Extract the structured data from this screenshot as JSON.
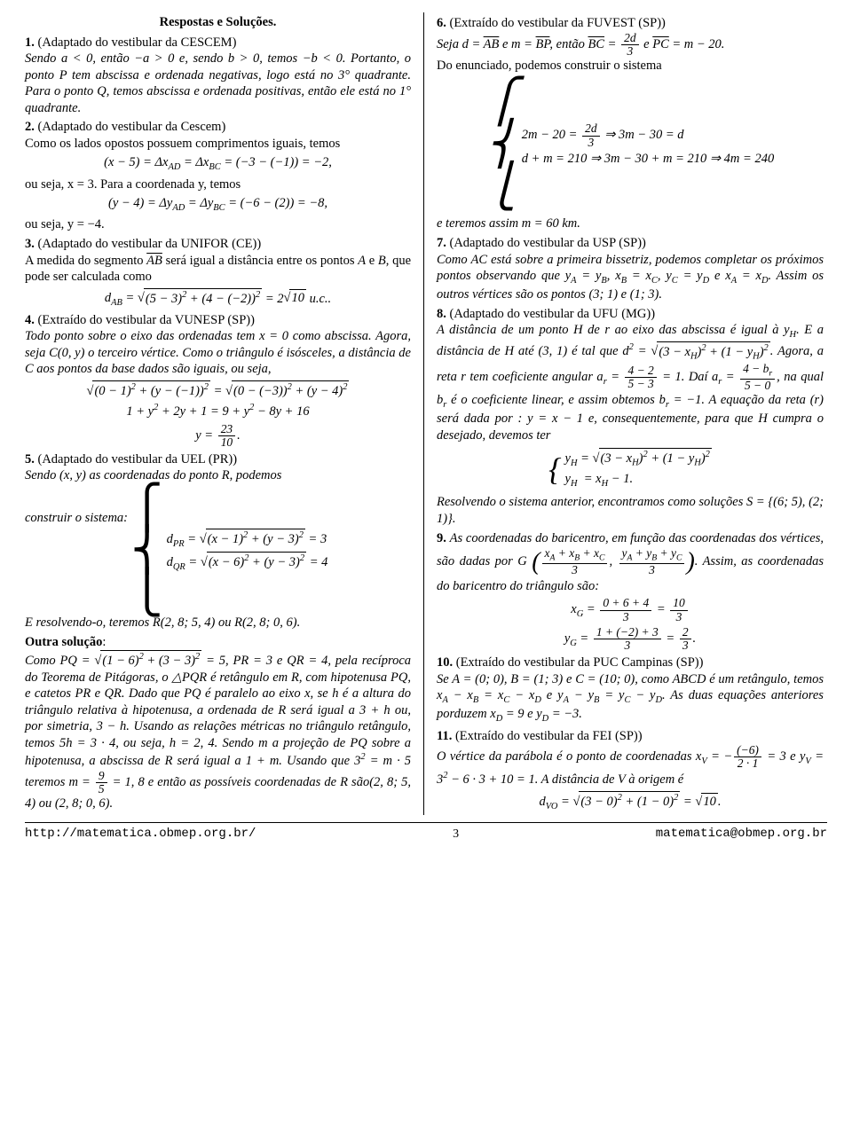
{
  "title": "Respostas e Soluções.",
  "left": {
    "p1a": "1.",
    "p1b": "(Adaptado do vestibular da CESCEM)",
    "t1": "Sendo a < 0, então −a > 0 e, sendo b > 0, temos −b < 0. Portanto, o ponto P tem abscissa e ordenada negativas, logo está no 3° quadrante. Para o ponto Q, temos abscissa e ordenada positivas, então ele está no 1° quadrante.",
    "p2a": "2.",
    "p2b": "(Adaptado do vestibular da Cescem)",
    "t2": "Como os lados opostos possuem comprimentos iguais, temos",
    "e2a": "(x − 5) = Δx<sub>AD</sub> = Δx<sub>BC</sub> = (−3 − (−1)) = −2,",
    "t2b": "ou seja, x = 3. Para a coordenada y, temos",
    "e2b": "(y − 4) = Δy<sub>AD</sub> = Δy<sub>BC</sub> = (−6 − (2)) = −8,",
    "t2c": "ou seja, y = −4.",
    "p3a": "3.",
    "p3b": "(Adaptado do vestibular da UNIFOR (CE))",
    "t3": "A medida do segmento AB será igual a distância entre os pontos A e B, que pode ser calculada como",
    "e3pre": "d<sub>AB</sub> = ",
    "e3rad": "(5 − 3)<sup>2</sup> + (4 − (−2))<sup>2</sup>",
    "e3post": " = 2",
    "e3rad2": "10",
    "e3end": " u.c..",
    "p4a": "4.",
    "p4b": "(Extraído do vestibular da VUNESP (SP))",
    "t4": "Todo ponto sobre o eixo das ordenadas tem x = 0 como abscissa. Agora, seja C(0, y) o terceiro vértice. Como o triângulo é isósceles, a distância de C aos pontos da base dados são iguais, ou seja,",
    "e4r1": "(0 − 1)<sup>2</sup> + (y − (−1))<sup>2</sup>",
    "e4r2": "(0 − (−3))<sup>2</sup> + (y − 4)<sup>2</sup>",
    "e4l2": "1 + y<sup>2</sup> + 2y + 1 = 9 + y<sup>2</sup> − 8y + 16",
    "e4yeq": "y = ",
    "e4n": "23",
    "e4d": "10",
    "p5a": "5.",
    "p5b": "(Adaptado do vestibular da UEL (PR))",
    "t5": "Sendo (x, y) as coordenadas do ponto R, podemos",
    "t5a": "construir o sistema:",
    "e5r1": "(x − 1)<sup>2</sup> + (y − 3)<sup>2</sup>",
    "e5r1b": " = 3",
    "e5r2": "(x − 6)<sup>2</sup> + (y − 3)<sup>2</sup>",
    "e5r2b": " = 4",
    "t5b": "E resolvendo-o, teremos R(2, 8; 5, 4) ou R(2, 8; 0, 6).",
    "os": "Outra solução",
    "t5c": "Como PQ = ",
    "e5r3": "(1 − 6)<sup>2</sup> + (3 − 3)<sup>2</sup>",
    "t5d": " = 5, PR = 3 e QR = 4, pela recíproca do Teorema de Pitágoras, o △PQR é retângulo em R, com hipotenusa PQ, e catetos PR e QR. Dado que PQ é paralelo ao eixo x, se h é a altura do triângulo relativa à hipotenusa, a ordenada de R será igual a 3 + h ou, por simetria, 3 − h. Usando as relações métricas no triângulo retângulo, temos 5h = 3 · 4, ou seja, h = 2, 4. Sendo m a projeção de PQ sobre a hipotenusa, a abscissa de R será igual a 1 + m. Usando que 3<sup>2</sup> = m · 5 teremos m = ",
    "e5n": "9",
    "e5d": "5",
    "t5e": " = 1, 8 e então as possíveis coordenadas de R são(2, 8; 5, 4) ou (2, 8; 0, 6)."
  },
  "right": {
    "p6a": "6.",
    "p6b": "(Extraído do vestibular da FUVEST (SP))",
    "t6a": "Seja d = ",
    "t6ab": "AB",
    "t6b": " e m = ",
    "t6bp": "BP",
    "t6c": ", então ",
    "t6bc": "BC",
    "t6d": " = ",
    "t6n": "2d",
    "t6dd": "3",
    "t6e": " e ",
    "t6pc": "PC",
    "t6f": " = m − 20.",
    "t6g": "Do enunciado, podemos construir o sistema",
    "e6l1a": "2m − 20 = ",
    "e6l1n": "2d",
    "e6l1d": "3",
    "e6l1b": " ⇒ 3m − 30 = d",
    "e6l2": "d + m = 210 ⇒ 3m − 30 + m = 210 ⇒ 4m = 240",
    "t6h": "e teremos assim m = 60 km.",
    "p7a": "7.",
    "p7b": "(Adaptado do vestibular da USP (SP))",
    "t7": "Como AC está sobre a primeira bissetriz, podemos completar os próximos pontos observando que y<sub>A</sub> = y<sub>B</sub>, x<sub>B</sub> = x<sub>C</sub>, y<sub>C</sub> = y<sub>D</sub> e x<sub>A</sub> = x<sub>D</sub>. Assim os outros vértices são os pontos (3; 1) e (1; 3).",
    "p8a": "8.",
    "p8b": "(Adaptado do vestibular da UFU (MG))",
    "t8a": "A distância de um ponto H de r ao eixo das abscissa é igual à y<sub>H</sub>. E a distância de H até (3, 1) é tal que d<sup>2</sup> = ",
    "e8r1": "(3 − x<sub>H</sub>)<sup>2</sup> + (1 − y<sub>H</sub>)<sup>2</sup>",
    "t8b": ". Agora, a reta r tem coeficiente angular a<sub>r</sub> = ",
    "e8n1": "4 − 2",
    "e8d1": "5 − 3",
    "t8c": " = 1. Daí a<sub>r</sub> = ",
    "e8n2": "4 − b<sub>r</sub>",
    "e8d2": "5 − 0",
    "t8d": ", na qual b<sub>r</sub> é o coeficiente linear, e assim obtemos b<sub>r</sub> = −1. A equação da reta (r) será dada por : y = x − 1 e, consequentemente, para que H cumpra o desejado, devemos ter",
    "e8l1a": "y<sub>H</sub>",
    "e8l1b": " = ",
    "e8l1r": "(3 − x<sub>H</sub>)<sup>2</sup> + (1 − y<sub>H</sub>)<sup>2</sup>",
    "e8l2": "y<sub>H</sub>&nbsp;&nbsp;= x<sub>H</sub> − 1.",
    "t8e": "Resolvendo o sistema anterior, encontramos como soluções S = {(6; 5), (2; 1)}.",
    "p9a": "9.",
    "t9a": "As coordenadas do baricentro, em função das coordenadas dos vértices, são dadas por G ",
    "e9p1n": "x<sub>A</sub> + x<sub>B</sub> + x<sub>C</sub>",
    "e9p1d": "3",
    "e9p2n": "y<sub>A</sub> + y<sub>B</sub> + y<sub>C</sub>",
    "e9p2d": "3",
    "t9b": ". Assim, as coordenadas do baricentro do triângulo são:",
    "e9xn": "0 + 6 + 4",
    "e9xd": "3",
    "e9xn2": "10",
    "e9xd2": "3",
    "e9yn": "1 + (−2) + 3",
    "e9yd": "3",
    "e9yn2": "2",
    "e9yd2": "3",
    "p10a": "10.",
    "p10b": "(Extraído do vestibular da PUC Campinas (SP))",
    "t10": "Se A = (0; 0), B = (1; 3) e C = (10; 0), como ABCD é um retângulo, temos x<sub>A</sub> − x<sub>B</sub> = x<sub>C</sub> − x<sub>D</sub> e y<sub>A</sub> − y<sub>B</sub> = y<sub>C</sub> − y<sub>D</sub>. As duas equações anteriores porduzem x<sub>D</sub> = 9 e y<sub>D</sub> = −3.",
    "p11a": "11.",
    "p11b": "(Extraído do vestibular da FEI (SP))",
    "t11a": "O vértice da parábola é o ponto de coordenadas x<sub>V</sub> = −",
    "e11n": "(−6)",
    "e11d": "2 · 1",
    "t11b": " = 3 e y<sub>V</sub> = 3<sup>2</sup> − 6 · 3 + 10 = 1. A distância de V à origem é",
    "e11dv": "d<sub>VO</sub> = ",
    "e11r": "(3 − 0)<sup>2</sup> + (1 − 0)<sup>2</sup>",
    "e11post": " = ",
    "e11r2": "10",
    "e11end": "."
  },
  "footer": {
    "url": "http://matematica.obmep.org.br/",
    "page": "3",
    "email": "matematica@obmep.org.br"
  }
}
